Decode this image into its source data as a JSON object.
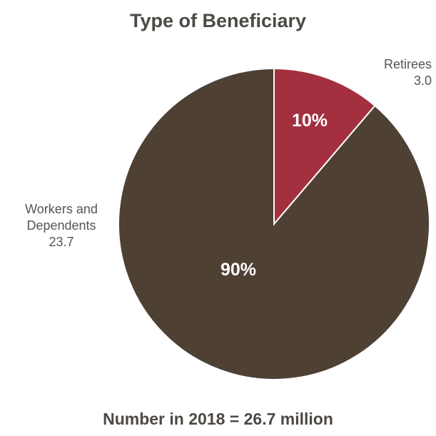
{
  "chart_data": {
    "type": "pie",
    "title": "Type of Beneficiary",
    "footer": "Number in 2018 = 26.7 million",
    "slices": [
      {
        "label_lines": [
          "Retirees"
        ],
        "value_text": "3.0",
        "value": 3.0,
        "percent_label": "10%",
        "color": "#a4303f"
      },
      {
        "label_lines": [
          "Workers and",
          "Dependents"
        ],
        "value_text": "23.7",
        "value": 23.7,
        "percent_label": "90%",
        "color": "#4f4034"
      }
    ],
    "start_angle_deg": 0,
    "direction": "clockwise",
    "slice_border_color": "#ffffff"
  }
}
